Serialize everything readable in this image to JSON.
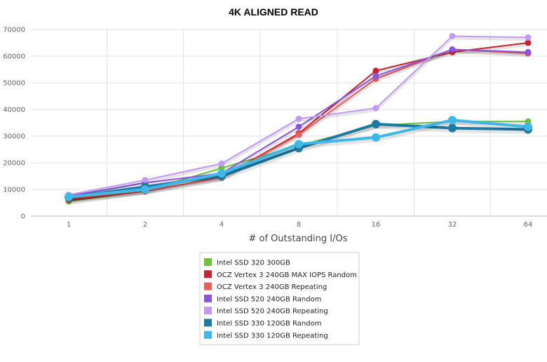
{
  "chart_data": {
    "type": "line",
    "title": "4K ALIGNED READ",
    "xlabel": "# of Outstanding I/Os",
    "ylabel": "",
    "categories": [
      "1",
      "2",
      "4",
      "8",
      "16",
      "32",
      "64"
    ],
    "ylim": [
      0,
      70000
    ],
    "yticks": [
      0,
      10000,
      20000,
      30000,
      40000,
      50000,
      60000,
      70000
    ],
    "grid": true,
    "legend_position": "bottom-center",
    "series": [
      {
        "name": "Intel SSD 320 300GB",
        "color": "#6ac23a",
        "values": [
          5500,
          9500,
          18000,
          26500,
          34000,
          35500,
          35500
        ]
      },
      {
        "name": "OCZ Vertex 3 240GB MAX IOPS Random",
        "color": "#c8232c",
        "values": [
          6000,
          9300,
          14500,
          31000,
          54500,
          61500,
          65000
        ]
      },
      {
        "name": "OCZ Vertex 3 240GB Repeating",
        "color": "#f05a5a",
        "values": [
          6500,
          9500,
          14300,
          30500,
          51500,
          62500,
          61000
        ]
      },
      {
        "name": "Intel SSD 520 240GB Random",
        "color": "#8a55e0",
        "values": [
          7500,
          12500,
          16000,
          33500,
          52500,
          62500,
          61500
        ]
      },
      {
        "name": "Intel SSD 520 240GB Repeating",
        "color": "#c29af5",
        "values": [
          8000,
          13500,
          19700,
          36500,
          40500,
          67500,
          67000
        ]
      },
      {
        "name": "Intel SSD 330 120GB Random",
        "color": "#1c7aa3",
        "values": [
          7000,
          11000,
          15000,
          25500,
          34500,
          33000,
          32500
        ]
      },
      {
        "name": "Intel SSD 330 120GB Repeating",
        "color": "#3fb8e8",
        "values": [
          7200,
          10000,
          16000,
          27000,
          29500,
          36000,
          33500
        ]
      }
    ]
  }
}
